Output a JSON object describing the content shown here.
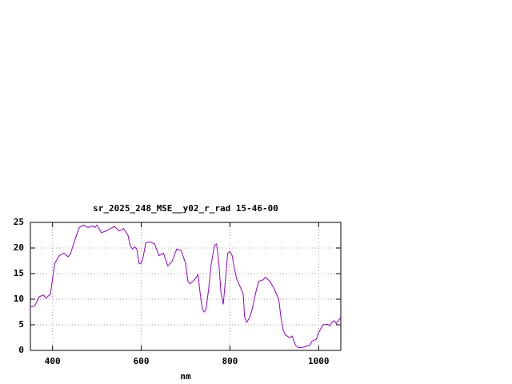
{
  "chart_data": {
    "type": "line",
    "title": "sr_2025_248_MSE__y02_r_rad 15-46-00",
    "x_label": "nm",
    "xlim": [
      350,
      1050
    ],
    "xticks": [
      400,
      600,
      800,
      1000
    ],
    "ylim": [
      0,
      25
    ],
    "yticks": [
      0,
      5,
      10,
      15,
      20,
      25
    ],
    "grid": true,
    "series": [
      {
        "color": "#9400d3",
        "x": [
          350,
          360,
          370,
          380,
          385,
          395,
          400,
          405,
          415,
          425,
          435,
          440,
          450,
          460,
          470,
          480,
          490,
          495,
          500,
          510,
          520,
          530,
          540,
          550,
          560,
          570,
          575,
          580,
          585,
          590,
          595,
          600,
          605,
          610,
          620,
          630,
          640,
          650,
          660,
          670,
          680,
          690,
          700,
          705,
          710,
          720,
          728,
          733,
          738,
          742,
          746,
          752,
          758,
          765,
          770,
          775,
          780,
          785,
          790,
          795,
          800,
          805,
          810,
          815,
          820,
          825,
          830,
          833,
          838,
          845,
          850,
          860,
          865,
          875,
          880,
          890,
          900,
          910,
          915,
          920,
          925,
          935,
          940,
          948,
          955,
          965,
          975,
          980,
          985,
          995,
          1000,
          1010,
          1020,
          1025,
          1030,
          1035,
          1040,
          1045,
          1050
        ],
        "values": [
          8.5,
          8.7,
          10.5,
          10.8,
          10.2,
          11,
          14,
          17,
          18.5,
          19,
          18.3,
          18.8,
          21.5,
          24,
          24.5,
          24,
          24.3,
          24,
          24.5,
          23,
          23.3,
          23.8,
          24.2,
          23.3,
          23.8,
          22.5,
          20.5,
          19.8,
          20.2,
          19.8,
          17,
          17,
          18.5,
          21,
          21.2,
          20.8,
          18.5,
          19,
          16.5,
          17.5,
          19.8,
          19.5,
          17,
          13.5,
          13,
          13.8,
          14.8,
          11,
          8,
          7.5,
          8,
          12,
          17,
          20.5,
          20.8,
          17,
          11,
          9,
          14,
          19,
          19.3,
          18.5,
          16,
          14,
          13,
          12,
          11,
          6.5,
          5.5,
          6.5,
          8,
          12,
          13.5,
          13.8,
          14.3,
          13.5,
          12,
          10,
          6.5,
          4,
          3,
          2.5,
          2.8,
          1,
          0.5,
          0.6,
          0.9,
          1,
          1.8,
          2.2,
          3.5,
          5,
          5.1,
          4.8,
          5.5,
          5.8,
          5.2,
          5.9,
          6.4
        ]
      }
    ]
  }
}
